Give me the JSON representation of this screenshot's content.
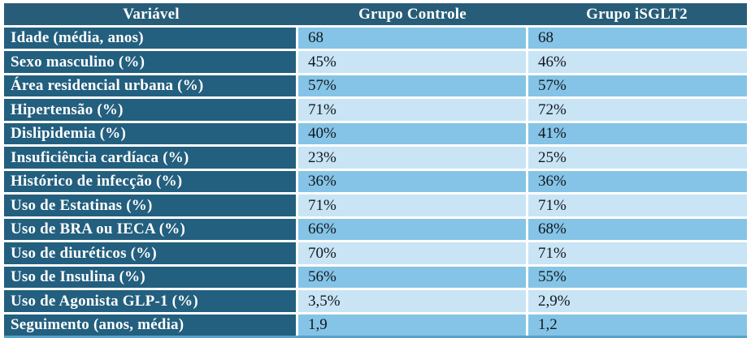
{
  "table": {
    "columns": [
      "Variável",
      "Grupo Controle",
      "Grupo iSGLT2"
    ],
    "rows": [
      {
        "label": "Idade (média, anos)",
        "controle": "68",
        "isglt2": "68"
      },
      {
        "label": "Sexo masculino (%)",
        "controle": "45%",
        "isglt2": "46%"
      },
      {
        "label": "Área residencial urbana (%)",
        "controle": "57%",
        "isglt2": "57%"
      },
      {
        "label": "Hipertensão (%)",
        "controle": "71%",
        "isglt2": "72%"
      },
      {
        "label": "Dislipidemia (%)",
        "controle": "40%",
        "isglt2": "41%"
      },
      {
        "label": "Insuficiência cardíaca (%)",
        "controle": "23%",
        "isglt2": "25%"
      },
      {
        "label": "Histórico de infecção (%)",
        "controle": "36%",
        "isglt2": "36%"
      },
      {
        "label": "Uso de Estatinas (%)",
        "controle": "71%",
        "isglt2": "71%"
      },
      {
        "label": "Uso de BRA ou IECA (%)",
        "controle": "66%",
        "isglt2": "68%"
      },
      {
        "label": "Uso de diuréticos (%)",
        "controle": "70%",
        "isglt2": "71%"
      },
      {
        "label": "Uso de Insulina (%)",
        "controle": "56%",
        "isglt2": "55%"
      },
      {
        "label": "Uso de Agonista GLP-1 (%)",
        "controle": "3,5%",
        "isglt2": "2,9%"
      },
      {
        "label": "Seguimento (anos, média)",
        "controle": "1,9",
        "isglt2": "1,2"
      }
    ]
  },
  "colors": {
    "header_bg": "#275d78",
    "label_bg": "#235f7e",
    "row_medium": "#85c4e6",
    "row_light": "#c9e4f4",
    "border_blue": "#54a3cb",
    "value_text": "#101820",
    "separator": "#ffffff"
  }
}
